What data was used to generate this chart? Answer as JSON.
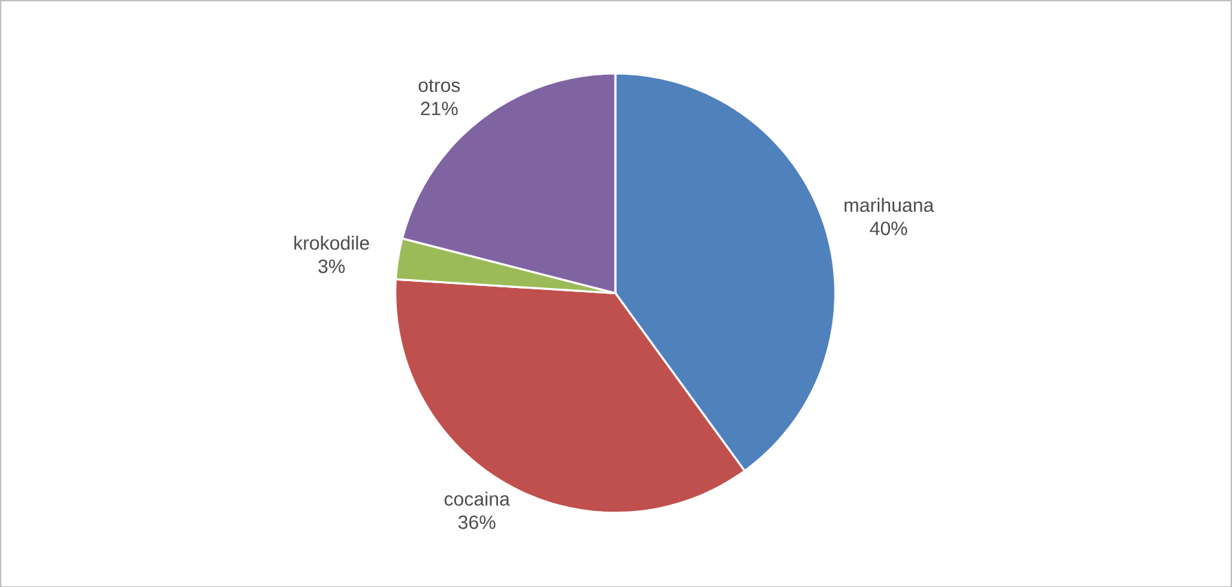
{
  "chart_data": {
    "type": "pie",
    "categories": [
      "marihuana",
      "cocaina",
      "krokodile",
      "otros"
    ],
    "values": [
      40,
      36,
      3,
      21
    ],
    "value_labels": [
      "40%",
      "36%",
      "3%",
      "21%"
    ],
    "colors": [
      "#4f81bd",
      "#c0504d",
      "#9bbb59",
      "#8064a2"
    ]
  }
}
